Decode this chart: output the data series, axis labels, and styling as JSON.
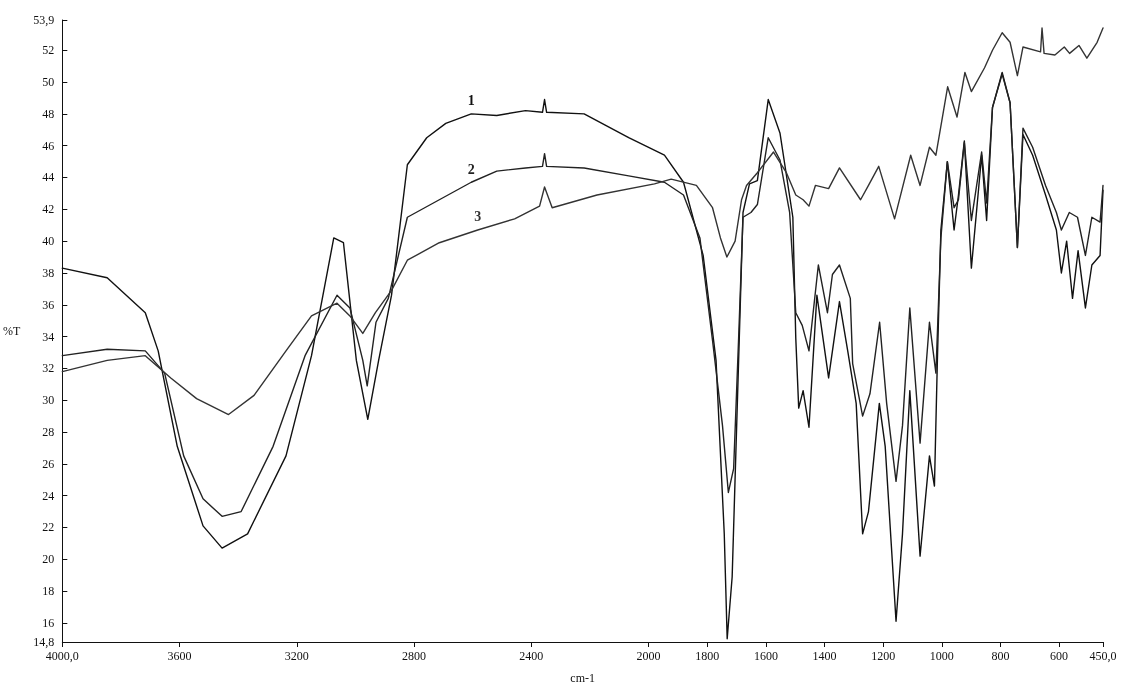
{
  "chart_data": {
    "type": "line",
    "xlabel": "cm-1",
    "ylabel": "%T",
    "xlim": [
      4000,
      450
    ],
    "xticks": [
      {
        "value": 4000,
        "label": "4000,0"
      },
      3600,
      3200,
      2800,
      2400,
      2000,
      1800,
      1600,
      1400,
      1200,
      1000,
      800,
      600,
      {
        "value": 450,
        "label": "450,0"
      }
    ],
    "ylim": [
      14.8,
      53.9
    ],
    "yticks": [
      {
        "value": 14.8,
        "label": "14,8"
      },
      16,
      18,
      20,
      22,
      24,
      26,
      28,
      30,
      32,
      34,
      36,
      38,
      40,
      42,
      44,
      46,
      48,
      50,
      52,
      {
        "value": 53.9,
        "label": "53,9"
      }
    ],
    "grid": false,
    "legend": false,
    "marker": "none",
    "line_style": "solid",
    "series": [
      {
        "name": "1",
        "color": "#111111",
        "x": [
          4000,
          3847,
          3717,
          3673,
          3608,
          3520,
          3455,
          3368,
          3237,
          3150,
          3074,
          3041,
          2997,
          2958,
          2921,
          2877,
          2823,
          2757,
          2692,
          2605,
          2518,
          2420,
          2362,
          2355,
          2348,
          2220,
          2068,
          1946,
          1881,
          1814,
          1770,
          1742,
          1732,
          1715,
          1693,
          1678,
          1656,
          1629,
          1592,
          1552,
          1508,
          1498,
          1488,
          1473,
          1453,
          1426,
          1386,
          1349,
          1320,
          1292,
          1270,
          1250,
          1213,
          1193,
          1156,
          1134,
          1109,
          1074,
          1042,
          1025,
          1015,
          1003,
          981,
          958,
          943,
          923,
          899,
          864,
          847,
          827,
          794,
          767,
          742,
          723,
          690,
          646,
          609,
          592,
          574,
          554,
          535,
          510,
          488,
          460,
          450
        ],
        "values": [
          38.3,
          37.7,
          35.5,
          33.1,
          27.1,
          22.1,
          20.7,
          21.6,
          26.5,
          32.8,
          40.2,
          39.9,
          32.5,
          28.8,
          32.5,
          36.6,
          44.8,
          46.5,
          47.4,
          48.0,
          47.9,
          48.2,
          48.1,
          48.9,
          48.1,
          48.0,
          46.5,
          45.4,
          43.7,
          39.1,
          32.5,
          21.6,
          15.0,
          18.9,
          32.5,
          41.8,
          43.6,
          43.8,
          48.9,
          46.8,
          41.5,
          33.9,
          29.5,
          30.6,
          28.3,
          36.6,
          31.4,
          36.2,
          33.0,
          29.8,
          21.6,
          23.0,
          29.8,
          27.1,
          16.1,
          21.6,
          30.6,
          20.2,
          26.5,
          24.6,
          32.5,
          40.7,
          45.0,
          40.7,
          42.9,
          46.3,
          38.3,
          45.4,
          41.3,
          48.4,
          50.6,
          48.7,
          39.6,
          46.7,
          45.4,
          42.9,
          40.7,
          38.0,
          40.0,
          36.4,
          39.4,
          35.8,
          38.5,
          39.1,
          43.2
        ]
      },
      {
        "name": "2",
        "color": "#222222",
        "x": [
          4000,
          3847,
          3717,
          3651,
          3586,
          3520,
          3455,
          3390,
          3281,
          3172,
          3063,
          3019,
          2975,
          2960,
          2930,
          2888,
          2823,
          2714,
          2605,
          2518,
          2420,
          2362,
          2355,
          2348,
          2220,
          2068,
          1946,
          1881,
          1825,
          1781,
          1748,
          1728,
          1710,
          1693,
          1678,
          1651,
          1629,
          1592,
          1552,
          1519,
          1498,
          1476,
          1453,
          1421,
          1390,
          1373,
          1349,
          1312,
          1304,
          1270,
          1245,
          1212,
          1188,
          1156,
          1134,
          1109,
          1074,
          1042,
          1020,
          1003,
          981,
          958,
          943,
          923,
          899,
          864,
          847,
          827,
          794,
          767,
          742,
          723,
          690,
          646,
          609,
          592,
          565,
          537,
          510,
          488,
          460,
          450
        ],
        "values": [
          32.8,
          33.2,
          33.1,
          31.7,
          26.5,
          23.8,
          22.7,
          23.0,
          27.1,
          32.8,
          36.6,
          35.8,
          32.5,
          30.9,
          34.9,
          36.4,
          41.5,
          42.6,
          43.7,
          44.4,
          44.6,
          44.7,
          45.5,
          44.7,
          44.6,
          44.1,
          43.7,
          42.9,
          40.2,
          33.6,
          28.4,
          24.2,
          25.7,
          33.9,
          41.5,
          41.8,
          42.3,
          46.5,
          45.1,
          41.8,
          35.5,
          34.7,
          33.1,
          38.5,
          35.5,
          37.9,
          38.5,
          36.4,
          32.3,
          29.0,
          30.4,
          34.9,
          29.8,
          24.9,
          28.4,
          35.8,
          27.3,
          34.9,
          31.7,
          40.2,
          45.0,
          42.1,
          42.6,
          46.2,
          41.3,
          45.6,
          42.4,
          48.4,
          50.5,
          48.7,
          39.6,
          47.1,
          45.9,
          43.5,
          41.8,
          40.7,
          41.8,
          41.5,
          39.1,
          41.5,
          41.2,
          43.5
        ]
      },
      {
        "name": "3",
        "color": "#333333",
        "x": [
          4000,
          3847,
          3717,
          3630,
          3542,
          3433,
          3346,
          3237,
          3150,
          3063,
          3019,
          2975,
          2932,
          2877,
          2823,
          2714,
          2583,
          2457,
          2372,
          2355,
          2329,
          2176,
          1980,
          1923,
          1837,
          1782,
          1755,
          1733,
          1705,
          1683,
          1666,
          1629,
          1574,
          1530,
          1498,
          1473,
          1453,
          1431,
          1386,
          1349,
          1277,
          1250,
          1215,
          1161,
          1106,
          1074,
          1042,
          1020,
          980,
          948,
          921,
          899,
          854,
          827,
          794,
          767,
          742,
          723,
          663,
          658,
          651,
          614,
          582,
          564,
          532,
          505,
          470,
          450
        ],
        "values": [
          31.8,
          32.5,
          32.8,
          31.4,
          30.1,
          29.1,
          30.3,
          33.1,
          35.3,
          36.1,
          35.3,
          34.2,
          35.5,
          36.9,
          38.8,
          39.9,
          40.7,
          41.4,
          42.2,
          43.4,
          42.1,
          42.9,
          43.6,
          43.9,
          43.5,
          42.1,
          40.2,
          39.0,
          40.0,
          42.6,
          43.5,
          44.3,
          45.6,
          44.3,
          42.9,
          42.6,
          42.2,
          43.5,
          43.3,
          44.6,
          42.6,
          43.5,
          44.7,
          41.4,
          45.4,
          43.5,
          45.9,
          45.4,
          49.7,
          47.8,
          50.6,
          49.4,
          50.9,
          52.0,
          53.1,
          52.5,
          50.4,
          52.2,
          51.9,
          53.4,
          51.8,
          51.7,
          52.2,
          51.8,
          52.3,
          51.5,
          52.5,
          53.4
        ]
      }
    ]
  }
}
